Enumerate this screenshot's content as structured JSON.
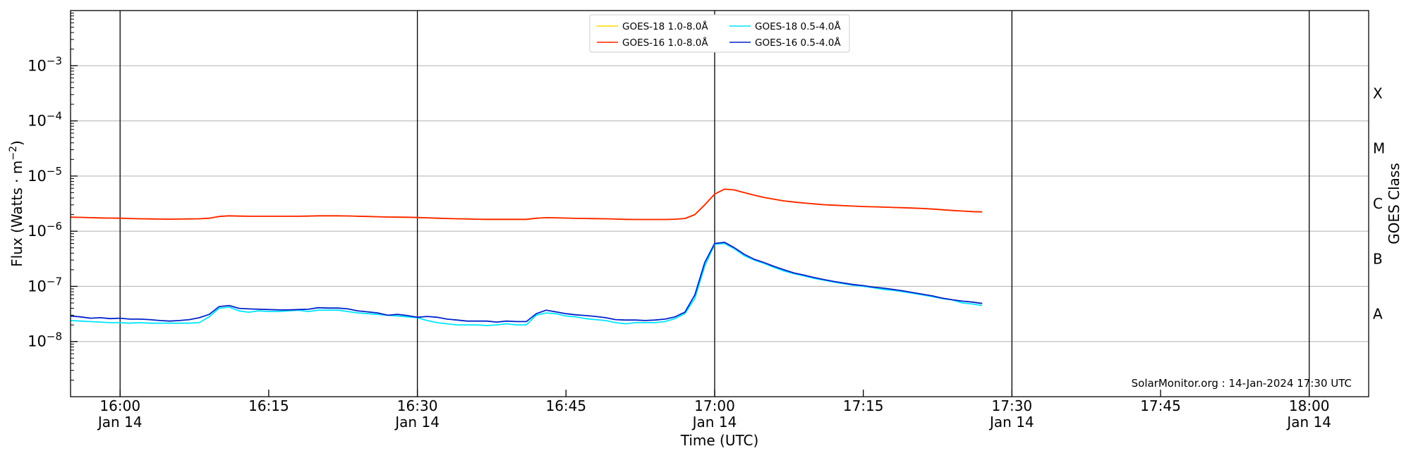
{
  "chart_data": {
    "type": "line",
    "title": "",
    "xlabel": "Time (UTC)",
    "ylabel": "Flux (Watts · m⁻²)",
    "y2label": "GOES Class",
    "yscale": "log",
    "ylim_exponent": [
      -9,
      -2
    ],
    "xlim": [
      "2024-01-14 15:55",
      "2024-01-14 18:06"
    ],
    "grid": "horizontal",
    "legend_location": "upper center",
    "credit": "SolarMonitor.org : 14-Jan-2024 17:30 UTC",
    "x_ticks": [
      {
        "t": "2024-01-14 16:00",
        "time": "16:00",
        "date": "Jan 14",
        "major": true
      },
      {
        "t": "2024-01-14 16:15",
        "time": "16:15",
        "date": "",
        "major": false
      },
      {
        "t": "2024-01-14 16:30",
        "time": "16:30",
        "date": "Jan 14",
        "major": true
      },
      {
        "t": "2024-01-14 16:45",
        "time": "16:45",
        "date": "",
        "major": false
      },
      {
        "t": "2024-01-14 17:00",
        "time": "17:00",
        "date": "Jan 14",
        "major": true
      },
      {
        "t": "2024-01-14 17:15",
        "time": "17:15",
        "date": "",
        "major": false
      },
      {
        "t": "2024-01-14 17:30",
        "time": "17:30",
        "date": "Jan 14",
        "major": true
      },
      {
        "t": "2024-01-14 17:45",
        "time": "17:45",
        "date": "",
        "major": false
      },
      {
        "t": "2024-01-14 18:00",
        "time": "18:00",
        "date": "Jan 14",
        "major": true
      }
    ],
    "y_ticks": [
      {
        "exponent": -8,
        "base": "10",
        "exp_label": "−8"
      },
      {
        "exponent": -7,
        "base": "10",
        "exp_label": "−7"
      },
      {
        "exponent": -6,
        "base": "10",
        "exp_label": "−6"
      },
      {
        "exponent": -5,
        "base": "10",
        "exp_label": "−5"
      },
      {
        "exponent": -4,
        "base": "10",
        "exp_label": "−4"
      },
      {
        "exponent": -3,
        "base": "10",
        "exp_label": "−3"
      }
    ],
    "goes_classes": [
      {
        "label": "A",
        "exponent": -7.5
      },
      {
        "label": "B",
        "exponent": -6.5
      },
      {
        "label": "C",
        "exponent": -5.5
      },
      {
        "label": "M",
        "exponent": -4.5
      },
      {
        "label": "X",
        "exponent": -3.5
      }
    ],
    "x": [
      "2024-01-14 15:55",
      "2024-01-14 15:56",
      "2024-01-14 15:57",
      "2024-01-14 15:58",
      "2024-01-14 15:59",
      "2024-01-14 16:00",
      "2024-01-14 16:01",
      "2024-01-14 16:02",
      "2024-01-14 16:03",
      "2024-01-14 16:04",
      "2024-01-14 16:05",
      "2024-01-14 16:06",
      "2024-01-14 16:07",
      "2024-01-14 16:08",
      "2024-01-14 16:09",
      "2024-01-14 16:10",
      "2024-01-14 16:11",
      "2024-01-14 16:12",
      "2024-01-14 16:13",
      "2024-01-14 16:14",
      "2024-01-14 16:15",
      "2024-01-14 16:16",
      "2024-01-14 16:17",
      "2024-01-14 16:18",
      "2024-01-14 16:19",
      "2024-01-14 16:20",
      "2024-01-14 16:21",
      "2024-01-14 16:22",
      "2024-01-14 16:23",
      "2024-01-14 16:24",
      "2024-01-14 16:25",
      "2024-01-14 16:26",
      "2024-01-14 16:27",
      "2024-01-14 16:28",
      "2024-01-14 16:29",
      "2024-01-14 16:30",
      "2024-01-14 16:31",
      "2024-01-14 16:32",
      "2024-01-14 16:33",
      "2024-01-14 16:34",
      "2024-01-14 16:35",
      "2024-01-14 16:36",
      "2024-01-14 16:37",
      "2024-01-14 16:38",
      "2024-01-14 16:39",
      "2024-01-14 16:40",
      "2024-01-14 16:41",
      "2024-01-14 16:42",
      "2024-01-14 16:43",
      "2024-01-14 16:44",
      "2024-01-14 16:45",
      "2024-01-14 16:46",
      "2024-01-14 16:47",
      "2024-01-14 16:48",
      "2024-01-14 16:49",
      "2024-01-14 16:50",
      "2024-01-14 16:51",
      "2024-01-14 16:52",
      "2024-01-14 16:53",
      "2024-01-14 16:54",
      "2024-01-14 16:55",
      "2024-01-14 16:56",
      "2024-01-14 16:57",
      "2024-01-14 16:58",
      "2024-01-14 16:59",
      "2024-01-14 17:00",
      "2024-01-14 17:01",
      "2024-01-14 17:02",
      "2024-01-14 17:03",
      "2024-01-14 17:04",
      "2024-01-14 17:05",
      "2024-01-14 17:06",
      "2024-01-14 17:07",
      "2024-01-14 17:08",
      "2024-01-14 17:09",
      "2024-01-14 17:10",
      "2024-01-14 17:11",
      "2024-01-14 17:12",
      "2024-01-14 17:13",
      "2024-01-14 17:14",
      "2024-01-14 17:15",
      "2024-01-14 17:16",
      "2024-01-14 17:17",
      "2024-01-14 17:18",
      "2024-01-14 17:19",
      "2024-01-14 17:20",
      "2024-01-14 17:21",
      "2024-01-14 17:22",
      "2024-01-14 17:23",
      "2024-01-14 17:24",
      "2024-01-14 17:25",
      "2024-01-14 17:26",
      "2024-01-14 17:27"
    ],
    "series": [
      {
        "name": "GOES-18 1.0-8.0Å",
        "color": "#ffd700",
        "values": [
          1.8e-06,
          1.78e-06,
          1.76e-06,
          1.74e-06,
          1.73e-06,
          1.72e-06,
          1.7e-06,
          1.68e-06,
          1.67e-06,
          1.66e-06,
          1.65e-06,
          1.66e-06,
          1.67e-06,
          1.68e-06,
          1.72e-06,
          1.85e-06,
          1.9e-06,
          1.88e-06,
          1.87e-06,
          1.87e-06,
          1.87e-06,
          1.87e-06,
          1.87e-06,
          1.87e-06,
          1.88e-06,
          1.9e-06,
          1.9e-06,
          1.9e-06,
          1.89e-06,
          1.87e-06,
          1.85e-06,
          1.83e-06,
          1.81e-06,
          1.8e-06,
          1.79e-06,
          1.77e-06,
          1.75e-06,
          1.72e-06,
          1.7e-06,
          1.68e-06,
          1.67e-06,
          1.65e-06,
          1.64e-06,
          1.64e-06,
          1.64e-06,
          1.64e-06,
          1.64e-06,
          1.72e-06,
          1.76e-06,
          1.75e-06,
          1.73e-06,
          1.71e-06,
          1.7e-06,
          1.69e-06,
          1.68e-06,
          1.66e-06,
          1.64e-06,
          1.63e-06,
          1.63e-06,
          1.63e-06,
          1.63e-06,
          1.65e-06,
          1.7e-06,
          2e-06,
          3e-06,
          4.7e-06,
          5.8e-06,
          5.6e-06,
          5e-06,
          4.5e-06,
          4.1e-06,
          3.8e-06,
          3.55e-06,
          3.38e-06,
          3.25e-06,
          3.13e-06,
          3.03e-06,
          2.96e-06,
          2.9e-06,
          2.85e-06,
          2.8e-06,
          2.77e-06,
          2.74e-06,
          2.7e-06,
          2.67e-06,
          2.63e-06,
          2.58e-06,
          2.52e-06,
          2.45e-06,
          2.38e-06,
          2.32e-06,
          2.27e-06,
          2.24e-06
        ]
      },
      {
        "name": "GOES-16 1.0-8.0Å",
        "color": "#ff2200",
        "values": [
          1.8e-06,
          1.78e-06,
          1.76e-06,
          1.74e-06,
          1.73e-06,
          1.72e-06,
          1.7e-06,
          1.68e-06,
          1.67e-06,
          1.66e-06,
          1.65e-06,
          1.66e-06,
          1.67e-06,
          1.68e-06,
          1.72e-06,
          1.85e-06,
          1.9e-06,
          1.88e-06,
          1.87e-06,
          1.87e-06,
          1.87e-06,
          1.87e-06,
          1.87e-06,
          1.87e-06,
          1.88e-06,
          1.9e-06,
          1.9e-06,
          1.9e-06,
          1.89e-06,
          1.87e-06,
          1.85e-06,
          1.83e-06,
          1.81e-06,
          1.8e-06,
          1.79e-06,
          1.77e-06,
          1.75e-06,
          1.72e-06,
          1.7e-06,
          1.68e-06,
          1.67e-06,
          1.65e-06,
          1.64e-06,
          1.64e-06,
          1.64e-06,
          1.64e-06,
          1.64e-06,
          1.72e-06,
          1.76e-06,
          1.75e-06,
          1.73e-06,
          1.71e-06,
          1.7e-06,
          1.69e-06,
          1.68e-06,
          1.66e-06,
          1.64e-06,
          1.63e-06,
          1.63e-06,
          1.63e-06,
          1.63e-06,
          1.65e-06,
          1.7e-06,
          2e-06,
          3e-06,
          4.7e-06,
          5.8e-06,
          5.6e-06,
          5e-06,
          4.5e-06,
          4.1e-06,
          3.8e-06,
          3.55e-06,
          3.38e-06,
          3.25e-06,
          3.13e-06,
          3.03e-06,
          2.96e-06,
          2.9e-06,
          2.85e-06,
          2.8e-06,
          2.77e-06,
          2.74e-06,
          2.7e-06,
          2.67e-06,
          2.63e-06,
          2.58e-06,
          2.52e-06,
          2.45e-06,
          2.38e-06,
          2.32e-06,
          2.27e-06,
          2.24e-06
        ]
      },
      {
        "name": "GOES-18 0.5-4.0Å",
        "color": "#00e5ff",
        "values": [
          2.4e-08,
          2.35e-08,
          2.3e-08,
          2.25e-08,
          2.2e-08,
          2.2e-08,
          2.15e-08,
          2.2e-08,
          2.15e-08,
          2.15e-08,
          2.15e-08,
          2.15e-08,
          2.15e-08,
          2.2e-08,
          2.8e-08,
          4e-08,
          4.2e-08,
          3.6e-08,
          3.4e-08,
          3.6e-08,
          3.5e-08,
          3.5e-08,
          3.6e-08,
          3.7e-08,
          3.5e-08,
          3.7e-08,
          3.7e-08,
          3.7e-08,
          3.5e-08,
          3.3e-08,
          3.2e-08,
          3.1e-08,
          3e-08,
          2.9e-08,
          2.8e-08,
          2.7e-08,
          2.4e-08,
          2.2e-08,
          2.1e-08,
          2e-08,
          2e-08,
          2e-08,
          1.95e-08,
          2e-08,
          2.1e-08,
          2e-08,
          2e-08,
          3e-08,
          3.3e-08,
          3.2e-08,
          2.9e-08,
          2.8e-08,
          2.6e-08,
          2.5e-08,
          2.4e-08,
          2.2e-08,
          2.1e-08,
          2.2e-08,
          2.2e-08,
          2.2e-08,
          2.3e-08,
          2.6e-08,
          3.2e-08,
          6e-08,
          2.3e-07,
          5.8e-07,
          6e-07,
          4.8e-07,
          3.6e-07,
          3e-07,
          2.6e-07,
          2.2e-07,
          1.9e-07,
          1.7e-07,
          1.55e-07,
          1.4e-07,
          1.3e-07,
          1.2e-07,
          1.12e-07,
          1.05e-07,
          1e-07,
          9.5e-08,
          8.8e-08,
          8.5e-08,
          8e-08,
          7.5e-08,
          7e-08,
          6.5e-08,
          6e-08,
          5.7e-08,
          5e-08,
          4.8e-08,
          4.5e-08
        ]
      },
      {
        "name": "GOES-16 0.5-4.0Å",
        "color": "#0022cc",
        "values": [
          2.9e-08,
          2.8e-08,
          2.65e-08,
          2.7e-08,
          2.6e-08,
          2.65e-08,
          2.55e-08,
          2.55e-08,
          2.5e-08,
          2.4e-08,
          2.35e-08,
          2.4e-08,
          2.5e-08,
          2.7e-08,
          3.1e-08,
          4.3e-08,
          4.5e-08,
          4e-08,
          3.9e-08,
          3.85e-08,
          3.8e-08,
          3.75e-08,
          3.75e-08,
          3.8e-08,
          3.85e-08,
          4.1e-08,
          4.05e-08,
          4.05e-08,
          3.9e-08,
          3.6e-08,
          3.45e-08,
          3.3e-08,
          3e-08,
          3.1e-08,
          2.95e-08,
          2.75e-08,
          2.85e-08,
          2.75e-08,
          2.55e-08,
          2.45e-08,
          2.35e-08,
          2.35e-08,
          2.35e-08,
          2.25e-08,
          2.35e-08,
          2.3e-08,
          2.3e-08,
          3.2e-08,
          3.7e-08,
          3.45e-08,
          3.2e-08,
          3.05e-08,
          2.95e-08,
          2.85e-08,
          2.7e-08,
          2.5e-08,
          2.45e-08,
          2.45e-08,
          2.4e-08,
          2.45e-08,
          2.55e-08,
          2.8e-08,
          3.4e-08,
          7e-08,
          2.7e-07,
          6e-07,
          6.3e-07,
          5e-07,
          3.8e-07,
          3.1e-07,
          2.7e-07,
          2.3e-07,
          2e-07,
          1.75e-07,
          1.6e-07,
          1.45e-07,
          1.33e-07,
          1.23e-07,
          1.15e-07,
          1.08e-07,
          1.03e-07,
          9.7e-08,
          9.3e-08,
          8.8e-08,
          8.3e-08,
          7.7e-08,
          7.2e-08,
          6.7e-08,
          6.1e-08,
          5.7e-08,
          5.4e-08,
          5.2e-08,
          4.9e-08
        ]
      }
    ]
  }
}
